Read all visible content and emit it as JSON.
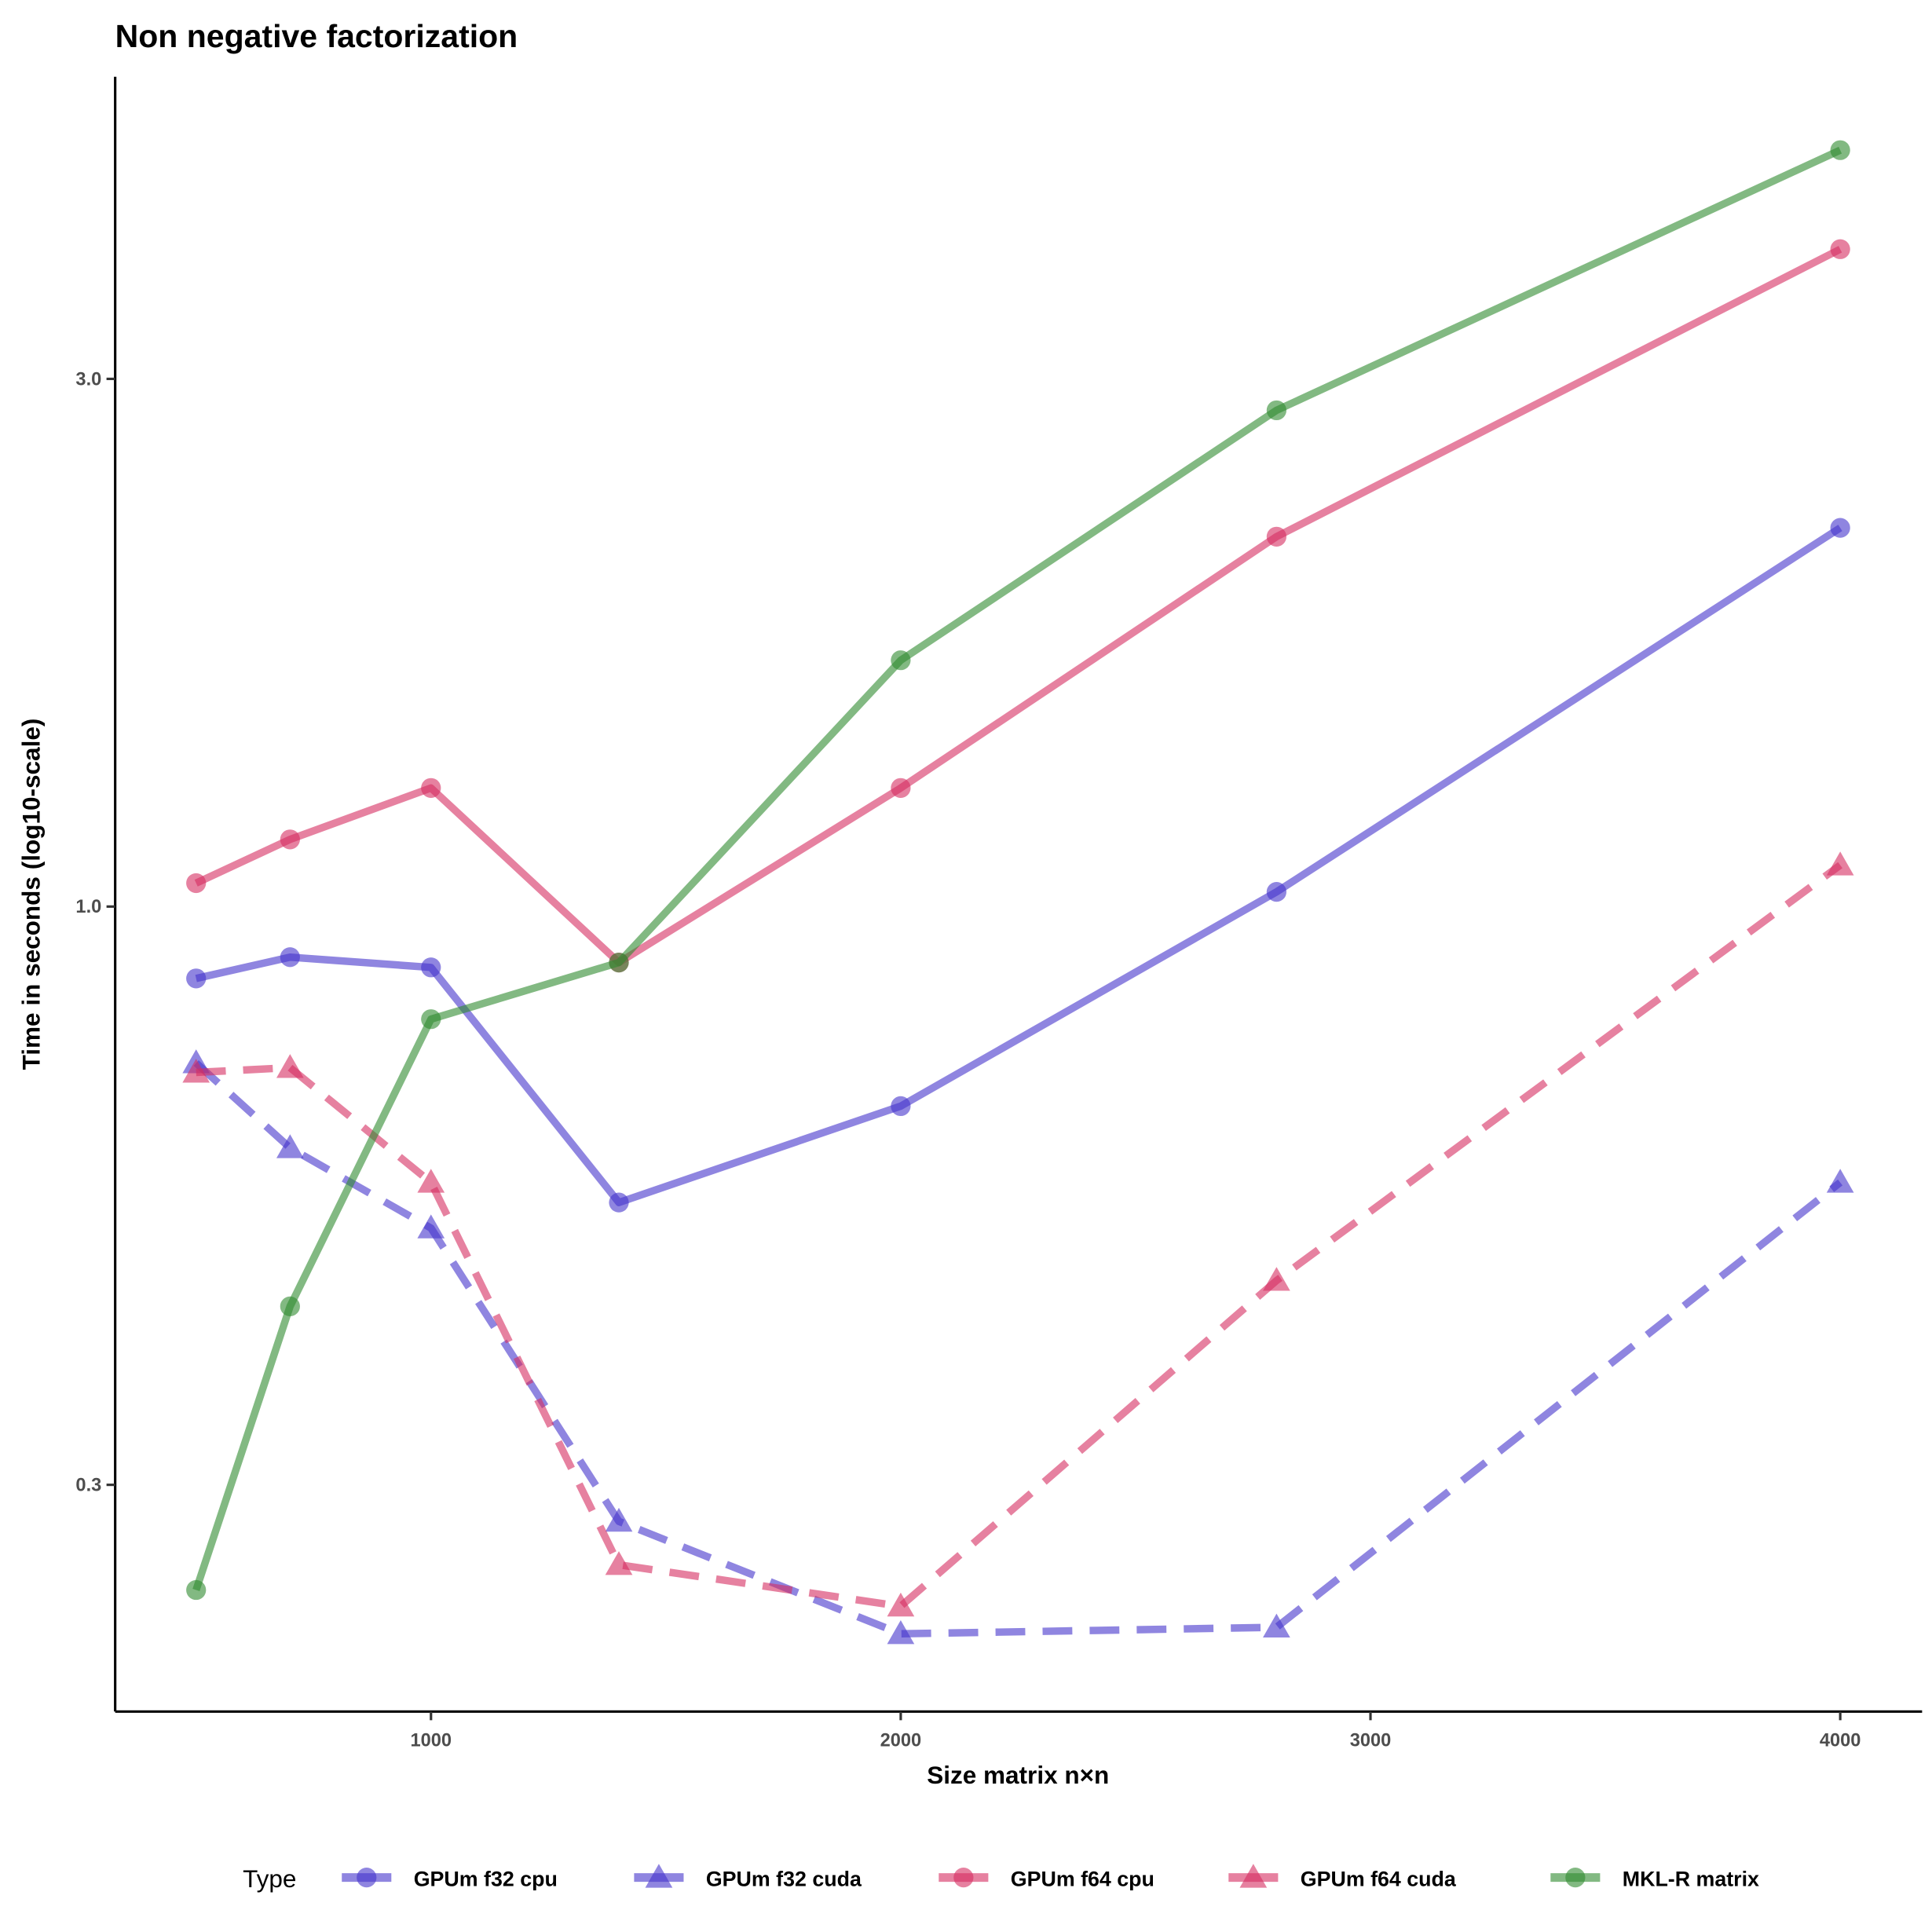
{
  "chart_data": {
    "type": "line",
    "title": "Non negative factorization",
    "xlabel": "Size matrix n×n",
    "ylabel": "Time in seconds (log10-scale)",
    "y_scale": "log10",
    "x_ticks": [
      1000,
      2000,
      3000,
      4000
    ],
    "x_tick_labels": [
      "1000",
      "2000",
      "3000",
      "4000"
    ],
    "y_ticks": [
      0.3,
      1.0,
      3.0
    ],
    "y_tick_labels": [
      "0.3",
      "1.0",
      "3.0"
    ],
    "grid": false,
    "legend": {
      "title": "Type",
      "position": "bottom"
    },
    "x": [
      500,
      700,
      1000,
      1400,
      2000,
      2800,
      4000
    ],
    "series": [
      {
        "name": "GPUm f32 cpu",
        "color": "#4433cc",
        "marker": "circle",
        "linestyle": "solid",
        "values": [
          0.861,
          0.9,
          0.881,
          0.54,
          0.66,
          1.031,
          2.2
        ]
      },
      {
        "name": "GPUm f32 cuda",
        "color": "#4433cc",
        "marker": "triangle",
        "linestyle": "dashed",
        "values": [
          0.722,
          0.605,
          0.512,
          0.278,
          0.22,
          0.223,
          0.563
        ]
      },
      {
        "name": "GPUm f64 cpu",
        "color": "#d62d60",
        "marker": "circle",
        "linestyle": "solid",
        "values": [
          1.05,
          1.15,
          1.28,
          0.89,
          1.28,
          2.16,
          3.93
        ]
      },
      {
        "name": "GPUm f64 cuda",
        "color": "#d62d60",
        "marker": "triangle",
        "linestyle": "dashed",
        "values": [
          0.708,
          0.715,
          0.563,
          0.254,
          0.233,
          0.459,
          1.09
        ]
      },
      {
        "name": "MKL-R matrix",
        "color": "#2e8b2e",
        "marker": "circle",
        "linestyle": "solid",
        "values": [
          0.241,
          0.435,
          0.791,
          0.89,
          1.67,
          2.81,
          4.83
        ]
      }
    ]
  }
}
